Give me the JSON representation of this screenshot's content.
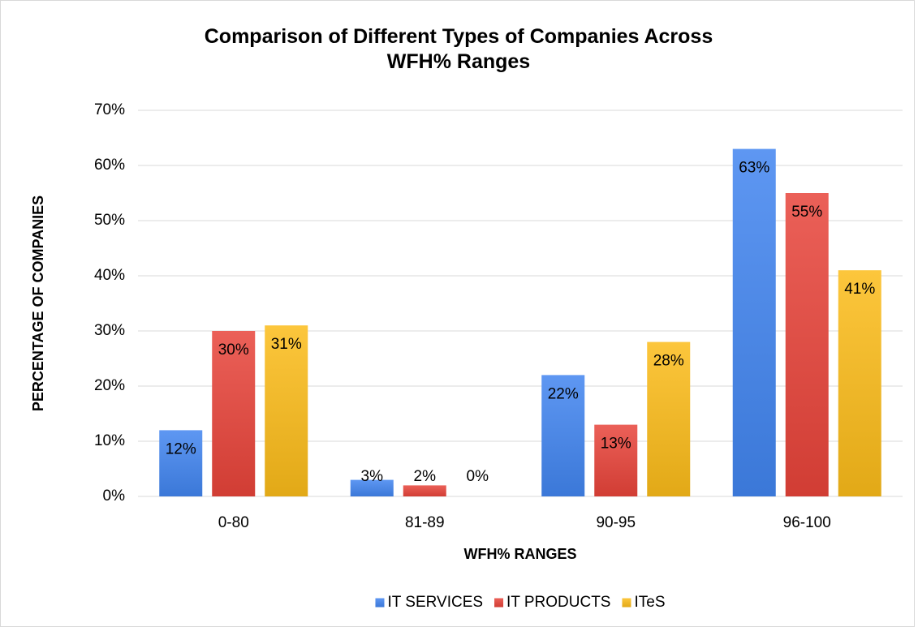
{
  "chart_data": {
    "type": "bar",
    "title": "Comparison of Different Types of Companies Across WFH% Ranges",
    "x_label": "WFH% RANGES",
    "y_label": "PERCENTAGE OF COMPANIES",
    "categories": [
      "0-80",
      "81-89",
      "90-95",
      "96-100"
    ],
    "series": [
      {
        "name": "IT SERVICES",
        "color": "#4185f0",
        "values": [
          12,
          3,
          22,
          63
        ],
        "value_labels": [
          "12%",
          "3%",
          "22%",
          "63%"
        ]
      },
      {
        "name": "IT PRODUCTS",
        "color": "#e8443a",
        "values": [
          30,
          2,
          13,
          55
        ],
        "value_labels": [
          "30%",
          "2%",
          "13%",
          "55%"
        ]
      },
      {
        "name": "ITeS",
        "color": "#fbbc1a",
        "values": [
          31,
          0,
          28,
          41
        ],
        "value_labels": [
          "31%",
          "0%",
          "28%",
          "41%"
        ]
      }
    ],
    "ylim": [
      0,
      70
    ],
    "yticks": [
      {
        "value": 0,
        "label": "0%"
      },
      {
        "value": 10,
        "label": "10%"
      },
      {
        "value": 20,
        "label": "20%"
      },
      {
        "value": 30,
        "label": "30%"
      },
      {
        "value": 40,
        "label": "40%"
      },
      {
        "value": 50,
        "label": "50%"
      },
      {
        "value": 60,
        "label": "60%"
      },
      {
        "value": 70,
        "label": "70%"
      }
    ],
    "grid": true,
    "legend": "bottom"
  }
}
